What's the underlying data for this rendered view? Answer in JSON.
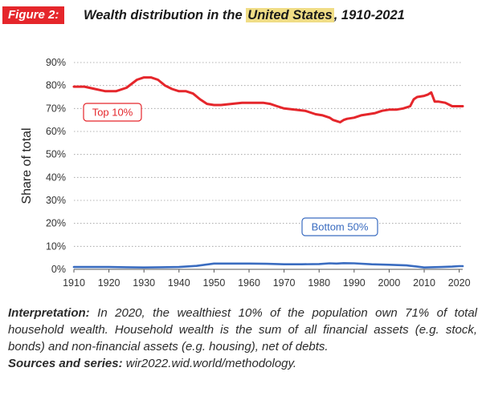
{
  "header": {
    "figure_label": "Figure 2:",
    "title_prefix": "Wealth distribution in the ",
    "title_highlight": "United States",
    "title_suffix": ", 1910-2021"
  },
  "chart_data": {
    "type": "line",
    "title": "Wealth distribution in the United States, 1910-2021",
    "xlabel": "",
    "ylabel": "Share of total",
    "xlim": [
      1910,
      2021
    ],
    "ylim": [
      0,
      90
    ],
    "x_ticks": [
      "1910",
      "1920",
      "1930",
      "1940",
      "1950",
      "1960",
      "1970",
      "1980",
      "1990",
      "2000",
      "2010",
      "2020"
    ],
    "y_ticks": [
      "0%",
      "10%",
      "20%",
      "30%",
      "40%",
      "50%",
      "60%",
      "70%",
      "80%",
      "90%"
    ],
    "grid": "horizontal dotted",
    "series": [
      {
        "name": "Top 10%",
        "color": "#e5262b",
        "x": [
          1910,
          1913,
          1916,
          1919,
          1922,
          1925,
          1928,
          1930,
          1932,
          1934,
          1936,
          1938,
          1940,
          1942,
          1944,
          1946,
          1948,
          1950,
          1952,
          1955,
          1958,
          1960,
          1962,
          1964,
          1966,
          1968,
          1970,
          1973,
          1976,
          1979,
          1981,
          1983,
          1984,
          1985,
          1986,
          1987,
          1988,
          1990,
          1992,
          1994,
          1996,
          1998,
          2000,
          2002,
          2004,
          2006,
          2007,
          2008,
          2010,
          2011,
          2012,
          2013,
          2014,
          2016,
          2018,
          2020,
          2021
        ],
        "values": [
          79.5,
          79.5,
          78.5,
          77.5,
          77.5,
          79,
          82.5,
          83.5,
          83.5,
          82.5,
          80,
          78.5,
          77.5,
          77.5,
          76.5,
          74,
          72,
          71.5,
          71.5,
          72,
          72.5,
          72.5,
          72.5,
          72.5,
          72,
          71,
          70,
          69.5,
          69,
          67.5,
          67,
          66,
          65,
          64.5,
          64,
          65,
          65.5,
          66,
          67,
          67.5,
          68,
          69,
          69.5,
          69.5,
          70,
          71,
          74,
          75,
          75.5,
          76,
          77,
          73,
          73,
          72.5,
          71,
          71,
          71
        ]
      },
      {
        "name": "Bottom 50%",
        "color": "#3a6cc0",
        "x": [
          1910,
          1915,
          1920,
          1925,
          1930,
          1935,
          1940,
          1945,
          1950,
          1955,
          1960,
          1965,
          1970,
          1975,
          1980,
          1983,
          1985,
          1987,
          1990,
          1995,
          2000,
          2005,
          2008,
          2010,
          2012,
          2015,
          2018,
          2020,
          2021
        ],
        "values": [
          1,
          1,
          1,
          0.9,
          0.8,
          0.9,
          1,
          1.5,
          2.5,
          2.5,
          2.5,
          2.4,
          2.2,
          2.2,
          2.3,
          2.6,
          2.5,
          2.7,
          2.6,
          2.2,
          2,
          1.7,
          1.2,
          0.8,
          0.9,
          1,
          1.2,
          1.4,
          1.4
        ]
      }
    ],
    "annotations": [
      {
        "text": "Top 10%",
        "series": "Top 10%"
      },
      {
        "text": "Bottom 50%",
        "series": "Bottom 50%"
      }
    ]
  },
  "footer": {
    "interpretation_label": "Interpretation:",
    "interpretation_text": " In 2020, the wealthiest 10% of the population own 71% of total household wealth. Household wealth is the sum of all financial assets (e.g. stock, bonds) and non-financial assets (e.g. housing), net of debts.",
    "sources_label": "Sources and series:",
    "sources_text": " wir2022.wid.world/methodology."
  }
}
